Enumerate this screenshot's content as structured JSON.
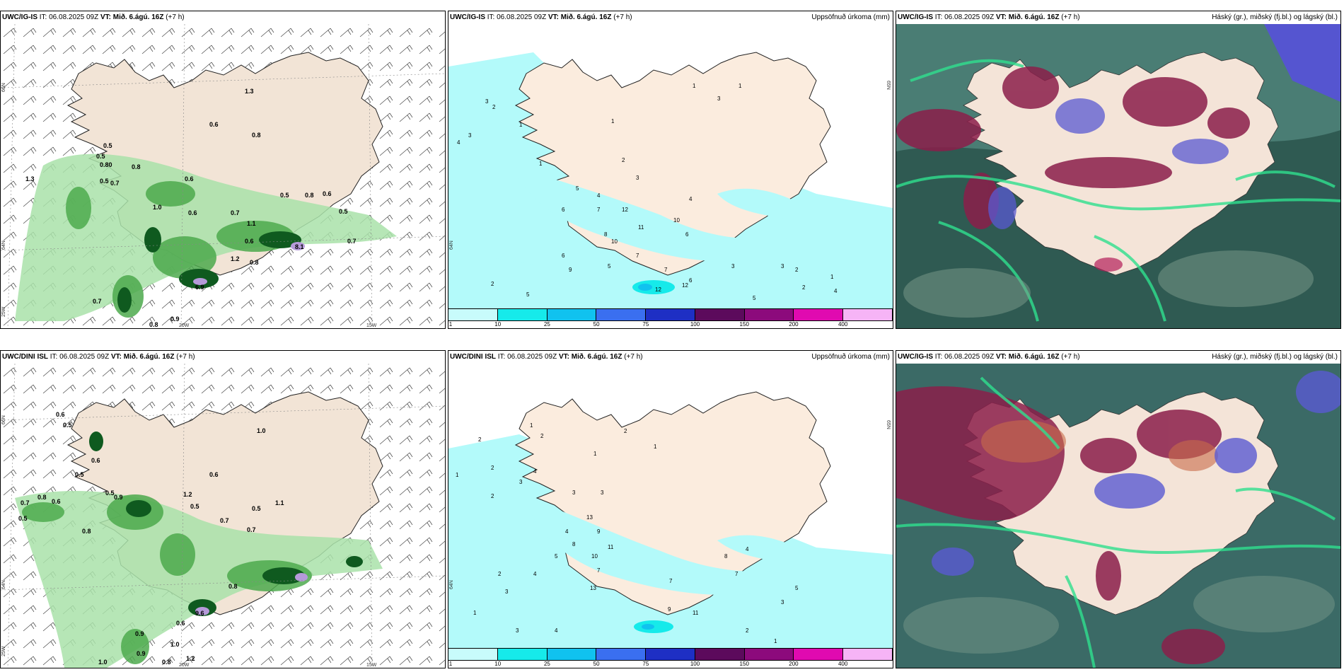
{
  "panels": [
    {
      "id": "p1",
      "title_model": "UWC/IG-IS",
      "title_it_prefix": "IT:",
      "title_it": "06.08.2025 09Z",
      "title_vt_prefix": "VT:",
      "title_vt": "Mið. 6.ágú. 16Z",
      "title_offset": "(+7 h)",
      "right_title": "",
      "labels": [
        "0.6",
        "0.8",
        "1.3",
        "0.5",
        "0.5",
        "0.80",
        "0.8",
        "0.6",
        "0.5",
        "0.7",
        "1.0",
        "0.6",
        "0.5",
        "0.8",
        "0.6",
        "0.5",
        "0.7",
        "1.1",
        "1.2",
        "0.7",
        "0.7",
        "0.6",
        "0.8",
        "0.9",
        "0.8",
        "6.9",
        "8.1",
        "1.3"
      ],
      "coords": [
        "66N",
        "64N",
        "25W",
        "20W",
        "15W"
      ]
    },
    {
      "id": "p2",
      "title_model": "UWC/IG-IS",
      "title_it_prefix": "IT:",
      "title_it": "06.08.2025 09Z",
      "title_vt_prefix": "VT:",
      "title_vt": "Mið. 6.ágú. 16Z",
      "title_offset": "(+7 h)",
      "right_title": "Uppsöfnuð úrkoma (mm)",
      "labels": [
        "4",
        "3",
        "2",
        "1",
        "3",
        "1",
        "2",
        "1",
        "1",
        "3",
        "1",
        "3",
        "5",
        "4",
        "6",
        "7",
        "12",
        "10",
        "11",
        "8",
        "7",
        "5",
        "6",
        "9",
        "7",
        "6",
        "12",
        "12",
        "10",
        "4",
        "3",
        "2",
        "2",
        "5",
        "3",
        "1",
        "2",
        "5",
        "4",
        "6"
      ],
      "coords": [
        "65N",
        "64N"
      ],
      "colorbar": {
        "ticks": [
          "1",
          "10",
          "25",
          "50",
          "75",
          "100",
          "150",
          "200",
          "400"
        ],
        "colors": [
          "#c8fbfb",
          "#16eaea",
          "#10c2ef",
          "#3a6ff0",
          "#1e2fc4",
          "#5c0a5c",
          "#8c0a7c",
          "#e00ab0",
          "#f6b4f6"
        ]
      }
    },
    {
      "id": "p3",
      "title_model": "UWC/IG-IS",
      "title_it_prefix": "IT:",
      "title_it": "06.08.2025 09Z",
      "title_vt_prefix": "VT:",
      "title_vt": "Mið. 6.ágú. 16Z",
      "title_offset": "(+7 h)",
      "right_title": "Háský (gr.), miðský (fj.bl.) og lágský (bl.)"
    },
    {
      "id": "p4",
      "title_model": "UWC/DINI ISL",
      "title_it_prefix": "IT:",
      "title_it": "06.08.2025 09Z",
      "title_vt_prefix": "VT:",
      "title_vt": "Mið. 6.ágú. 16Z",
      "title_offset": "(+7 h)",
      "right_title": "",
      "labels": [
        "0.6",
        "0.5",
        "0.6",
        "0.5",
        "0.8",
        "0.7",
        "0.5",
        "0.6",
        "0.9",
        "0.5",
        "0.8",
        "1.2",
        "0.5",
        "0.7",
        "0.5",
        "1.1",
        "0.6",
        "1.0",
        "0.7",
        "0.8",
        "0.9",
        "0.6",
        "1.0",
        "9.6",
        "1.2",
        "0.8",
        "0.9",
        "1.0"
      ],
      "coords": [
        "66N",
        "64N",
        "25W",
        "20W",
        "15W"
      ]
    },
    {
      "id": "p5",
      "title_model": "UWC/DINI ISL",
      "title_it_prefix": "IT:",
      "title_it": "06.08.2025 09Z",
      "title_vt_prefix": "VT:",
      "title_vt": "Mið. 6.ágú. 16Z",
      "title_offset": "(+7 h)",
      "right_title": "Uppsöfnuð úrkoma (mm)",
      "labels": [
        "2",
        "1",
        "2",
        "2",
        "3",
        "4",
        "2",
        "1",
        "1",
        "2",
        "1",
        "3",
        "4",
        "3",
        "13",
        "9",
        "11",
        "10",
        "8",
        "7",
        "5",
        "2",
        "4",
        "3",
        "13",
        "7",
        "9",
        "11",
        "3",
        "4",
        "1",
        "5",
        "3",
        "2",
        "1",
        "7",
        "8",
        "4"
      ],
      "coords": [
        "65N",
        "64N"
      ],
      "colorbar": {
        "ticks": [
          "1",
          "10",
          "25",
          "50",
          "75",
          "100",
          "150",
          "200",
          "400"
        ],
        "colors": [
          "#c8fbfb",
          "#16eaea",
          "#10c2ef",
          "#3a6ff0",
          "#1e2fc4",
          "#5c0a5c",
          "#8c0a7c",
          "#e00ab0",
          "#f6b4f6"
        ]
      }
    },
    {
      "id": "p6",
      "title_model": "UWC/IG-IS",
      "title_it_prefix": "IT:",
      "title_it": "06.08.2025 09Z",
      "title_vt_prefix": "VT:",
      "title_vt": "Mið. 6.ágú. 16Z",
      "title_offset": "(+7 h)",
      "right_title": "Háský (gr.), miðský (fj.bl.) og lágský (bl.)"
    }
  ]
}
